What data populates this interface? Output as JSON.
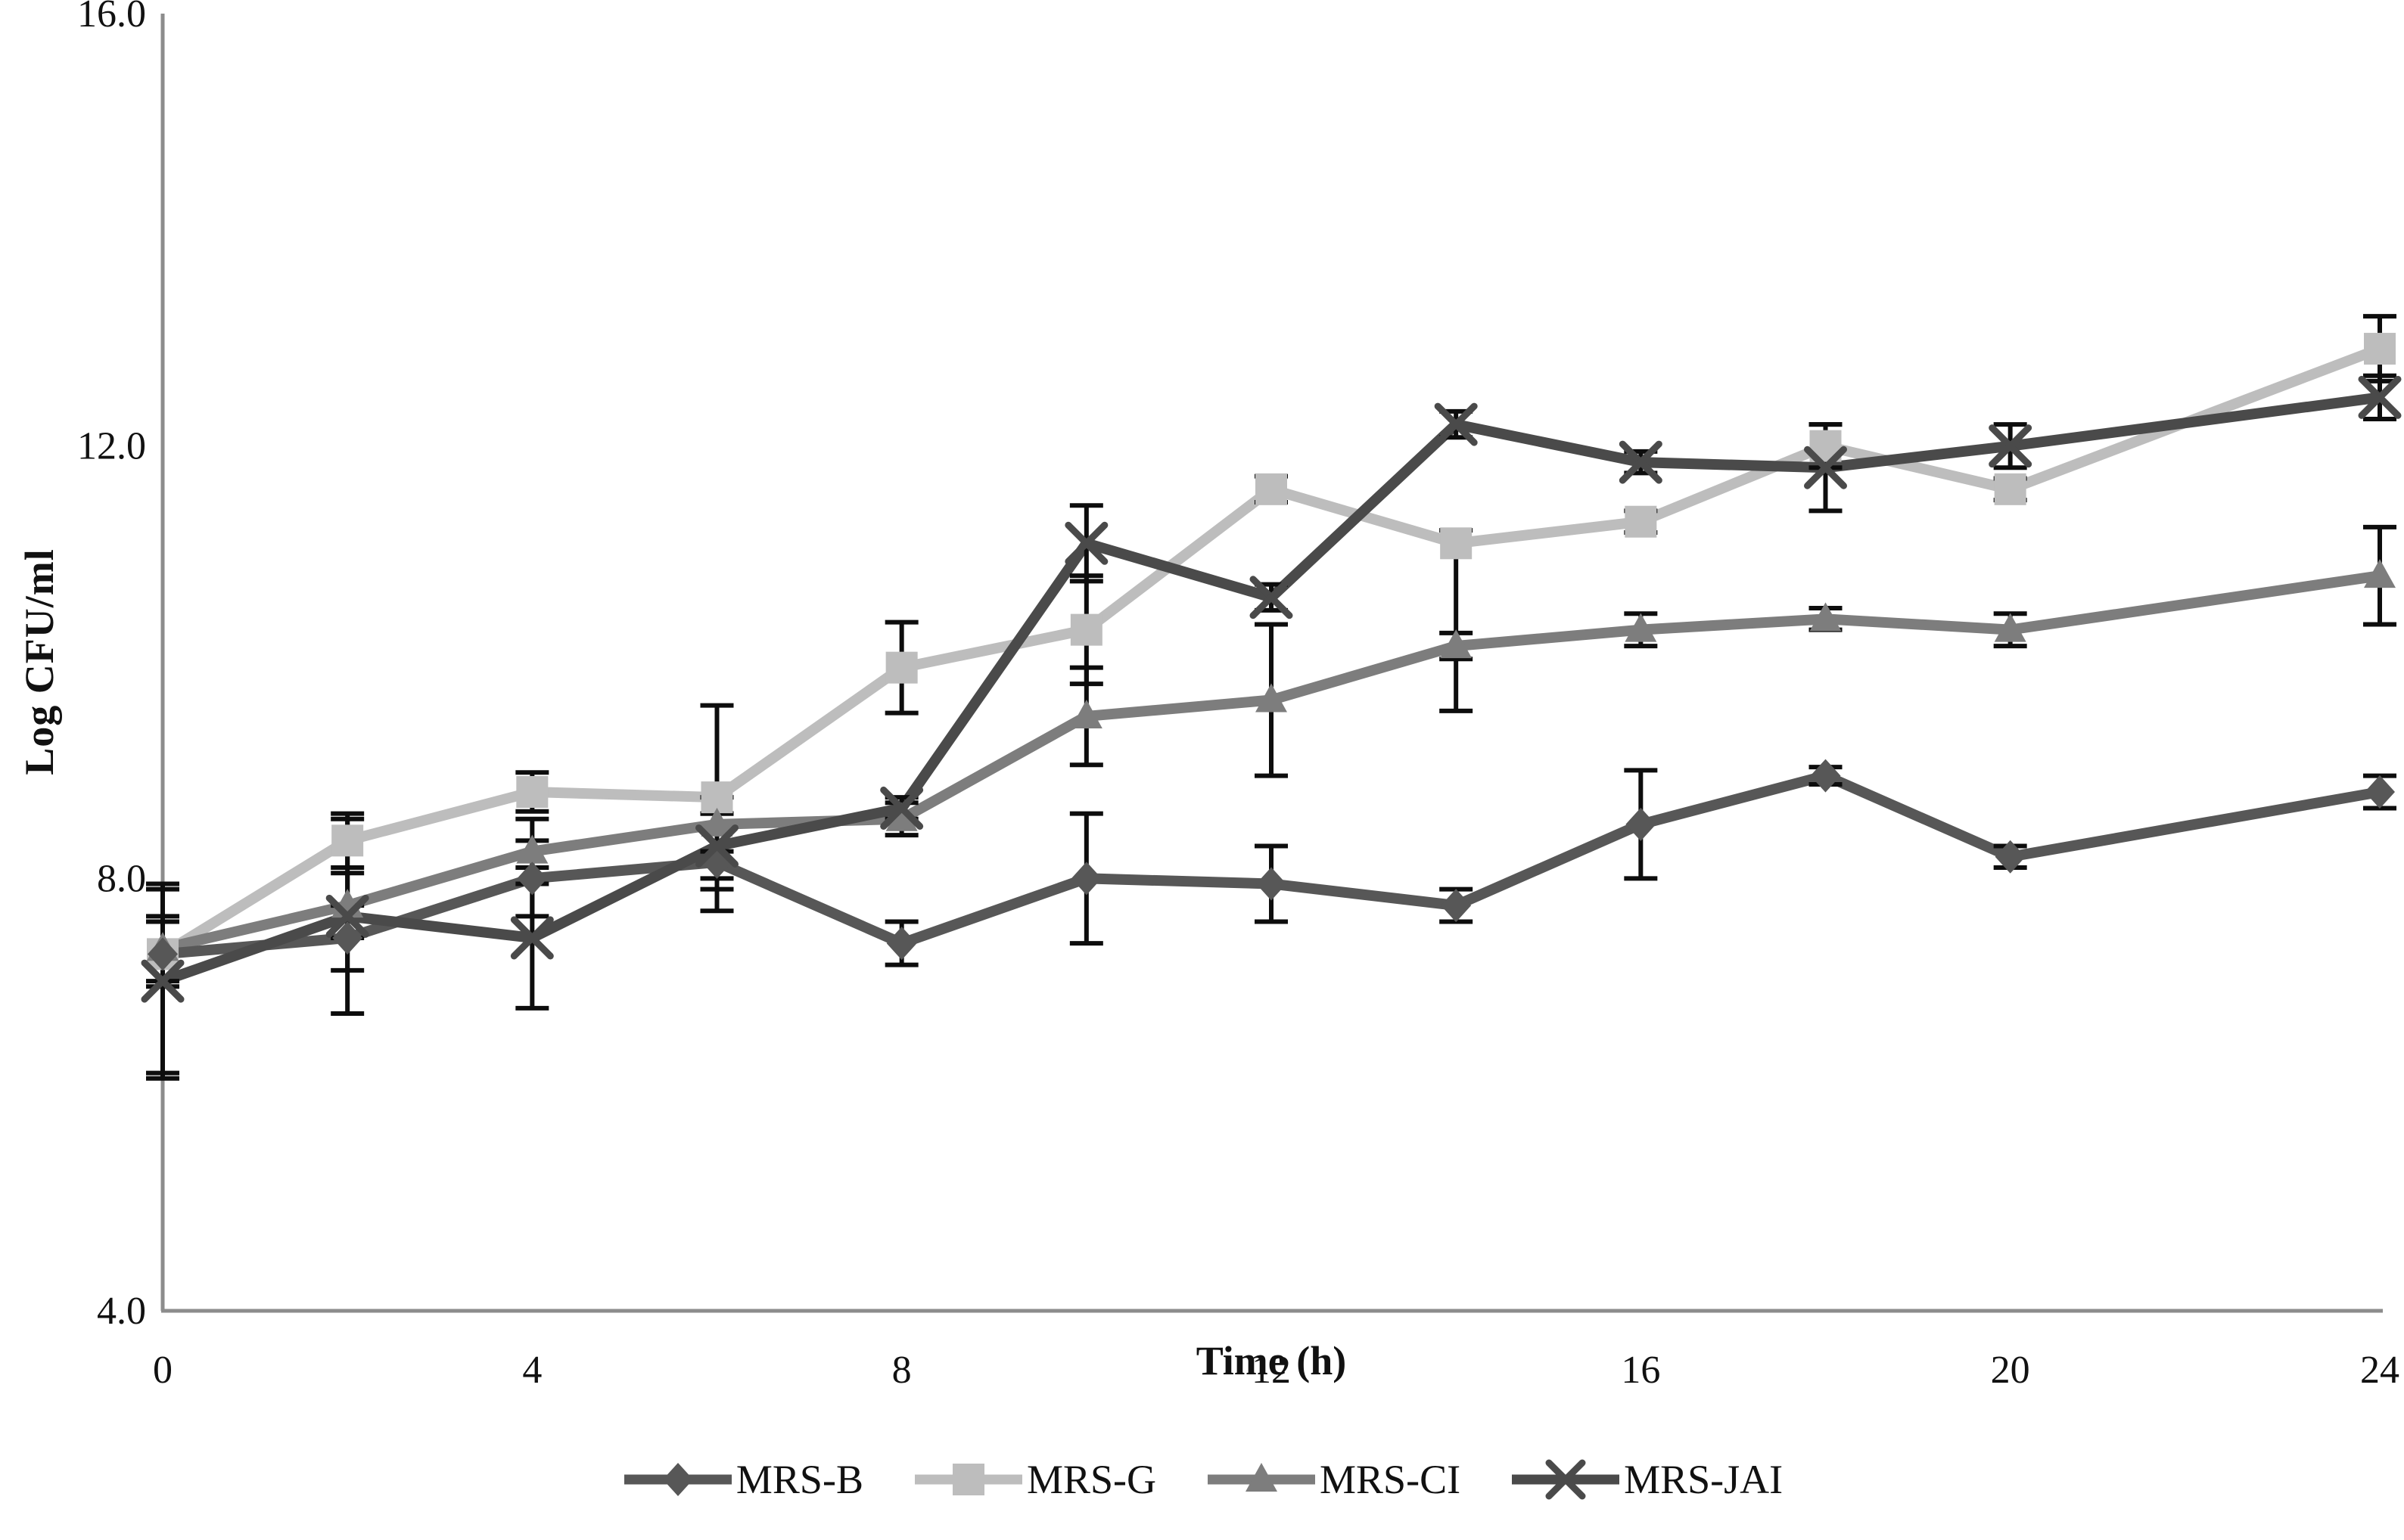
{
  "figure": {
    "background": "#ffffff",
    "axis_color": "#8c8c8c",
    "error_bar_color": "#0d0d0d",
    "text_color": "#111111"
  },
  "chart_data": {
    "type": "line",
    "title": "",
    "xlabel": "Time (h)",
    "ylabel": "Log CFU/ml",
    "x": [
      0,
      2,
      4,
      6,
      8,
      10,
      12,
      14,
      16,
      18,
      20,
      24
    ],
    "xlim": [
      0,
      24
    ],
    "ylim": [
      4.0,
      16.0
    ],
    "grid": false,
    "legend_position": "bottom",
    "error_bars": true,
    "x_ticks": [
      {
        "label": "0",
        "value": 0
      },
      {
        "label": "4",
        "value": 4
      },
      {
        "label": "8",
        "value": 8
      },
      {
        "label": "12",
        "value": 12
      },
      {
        "label": "16",
        "value": 16
      },
      {
        "label": "20",
        "value": 20
      },
      {
        "label": "24",
        "value": 24
      }
    ],
    "y_ticks": [
      {
        "label": "16.0",
        "value": 16
      },
      {
        "label": "12.0",
        "value": 12
      },
      {
        "label": "8.0",
        "value": 8
      },
      {
        "label": "4.0",
        "value": 4
      }
    ],
    "series": [
      {
        "name": "MRS-B",
        "marker": "diamond",
        "color": "#575757",
        "values": [
          7.3,
          7.45,
          8.0,
          8.15,
          7.4,
          8.0,
          7.95,
          7.75,
          8.5,
          8.95,
          8.2,
          8.8
        ],
        "errors": [
          [
            1.1,
            0.65
          ],
          0.3,
          0.35,
          0.45,
          0.2,
          0.6,
          0.35,
          0.15,
          0.5,
          0.08,
          0.1,
          0.15
        ]
      },
      {
        "name": "MRS-G",
        "marker": "square",
        "color": "#bdbdbd",
        "values": [
          7.3,
          8.35,
          8.8,
          8.75,
          9.95,
          10.3,
          11.6,
          11.1,
          11.3,
          12.0,
          11.6,
          12.9
        ],
        "errors": [
          0.3,
          0.25,
          0.18,
          0.85,
          0.42,
          0.5,
          0.12,
          [
            1.55,
            0.12
          ],
          0.1,
          0.2,
          0.1,
          0.3
        ]
      },
      {
        "name": "MRS-CI",
        "marker": "triangle",
        "color": "#7d7d7d",
        "values": [
          7.35,
          7.75,
          8.25,
          8.5,
          8.55,
          9.5,
          9.65,
          10.15,
          10.3,
          10.4,
          10.3,
          10.8
        ],
        "errors": [
          0.3,
          0.3,
          0.3,
          0.25,
          0.15,
          0.45,
          0.7,
          0.12,
          0.15,
          0.1,
          0.15,
          0.45
        ]
      },
      {
        "name": "MRS-JAI",
        "marker": "x",
        "color": "#4a4a4a",
        "values": [
          7.05,
          7.65,
          7.45,
          8.3,
          8.65,
          11.1,
          10.6,
          12.2,
          11.85,
          11.8,
          12.0,
          12.45
        ],
        "errors": [
          [
            0.9,
            0.85
          ],
          0.9,
          0.65,
          0.3,
          0.1,
          0.35,
          0.12,
          0.12,
          0.1,
          0.4,
          0.2,
          0.2
        ]
      }
    ]
  }
}
